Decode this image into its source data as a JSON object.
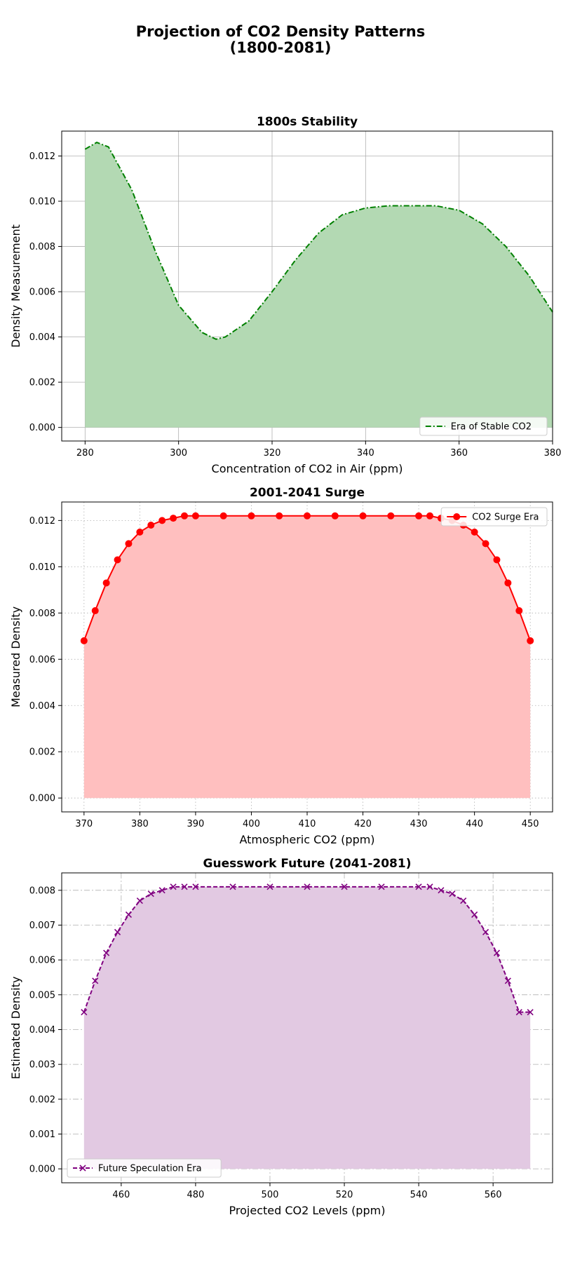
{
  "figure": {
    "title_line1": "Projection of CO2 Density Patterns",
    "title_line2": "(1800-2081)"
  },
  "chart_data": [
    {
      "type": "area",
      "title": "1800s Stability",
      "xlabel": "Concentration of CO2 in Air (ppm)",
      "ylabel": "Density Measurement",
      "xlim": [
        275,
        380
      ],
      "ylim": [
        -0.0006,
        0.0131
      ],
      "xticks": [
        "280",
        "300",
        "320",
        "340",
        "360",
        "380"
      ],
      "yticks": [
        "0.000",
        "0.002",
        "0.004",
        "0.006",
        "0.008",
        "0.010",
        "0.012"
      ],
      "grid": "solid",
      "legend_position": "lower-right",
      "series": [
        {
          "name": "Era of Stable CO2",
          "line_style": "dash-dot",
          "marker": "none",
          "color": "#008000",
          "fill_color": "#b3d9b3",
          "x": [
            280,
            282.5,
            285,
            290,
            295,
            300,
            305,
            308,
            310,
            315,
            320,
            325,
            330,
            335,
            340,
            345,
            350,
            355,
            360,
            365,
            370,
            375,
            380
          ],
          "y": [
            0.0123,
            0.0126,
            0.0124,
            0.0105,
            0.0078,
            0.0054,
            0.0042,
            0.0039,
            0.004,
            0.0047,
            0.006,
            0.0074,
            0.0086,
            0.0094,
            0.0097,
            0.0098,
            0.0098,
            0.0098,
            0.0096,
            0.009,
            0.008,
            0.0067,
            0.0051
          ]
        }
      ]
    },
    {
      "type": "area",
      "title": "2001-2041 Surge",
      "xlabel": "Atmospheric CO2 (ppm)",
      "ylabel": "Measured Density",
      "xlim": [
        366,
        454
      ],
      "ylim": [
        -0.0006,
        0.0128
      ],
      "xticks": [
        "370",
        "380",
        "390",
        "400",
        "410",
        "420",
        "430",
        "440",
        "450"
      ],
      "yticks": [
        "0.000",
        "0.002",
        "0.004",
        "0.006",
        "0.008",
        "0.010",
        "0.012"
      ],
      "grid": "dotted",
      "legend_position": "upper-right",
      "series": [
        {
          "name": "CO2 Surge Era",
          "line_style": "solid",
          "marker": "circle",
          "color": "#ff0000",
          "fill_color": "#ffbfbf",
          "x": [
            370,
            372,
            374,
            376,
            378,
            380,
            382,
            384,
            386,
            388,
            390,
            395,
            400,
            405,
            410,
            415,
            420,
            425,
            430,
            432,
            434,
            436,
            438,
            440,
            442,
            444,
            446,
            448,
            450
          ],
          "y": [
            0.0068,
            0.0081,
            0.0093,
            0.0103,
            0.011,
            0.0115,
            0.0118,
            0.012,
            0.0121,
            0.0122,
            0.0122,
            0.0122,
            0.0122,
            0.0122,
            0.0122,
            0.0122,
            0.0122,
            0.0122,
            0.0122,
            0.0122,
            0.0121,
            0.012,
            0.0118,
            0.0115,
            0.011,
            0.0103,
            0.0093,
            0.0081,
            0.0068
          ]
        }
      ]
    },
    {
      "type": "area",
      "title": "Guesswork Future (2041-2081)",
      "xlabel": "Projected CO2 Levels (ppm)",
      "ylabel": "Estimated Density",
      "xlim": [
        444,
        576
      ],
      "ylim": [
        -0.0004,
        0.0085
      ],
      "xticks": [
        "460",
        "480",
        "500",
        "520",
        "540",
        "560"
      ],
      "yticks": [
        "0.000",
        "0.001",
        "0.002",
        "0.003",
        "0.004",
        "0.005",
        "0.006",
        "0.007",
        "0.008"
      ],
      "grid": "dash-dot",
      "legend_position": "lower-left",
      "series": [
        {
          "name": "Future Speculation Era",
          "line_style": "dashed",
          "marker": "x",
          "color": "#800080",
          "fill_color": "#e2c9e2",
          "x": [
            450,
            453,
            456,
            459,
            462,
            465,
            468,
            471,
            474,
            477,
            480,
            490,
            500,
            510,
            520,
            530,
            540,
            543,
            546,
            549,
            552,
            555,
            558,
            561,
            564,
            567,
            570
          ],
          "y": [
            0.0045,
            0.0054,
            0.0062,
            0.0068,
            0.0073,
            0.0077,
            0.0079,
            0.008,
            0.0081,
            0.0081,
            0.0081,
            0.0081,
            0.0081,
            0.0081,
            0.0081,
            0.0081,
            0.0081,
            0.0081,
            0.008,
            0.0079,
            0.0077,
            0.0073,
            0.0068,
            0.0062,
            0.0054,
            0.0045,
            0.0045
          ]
        }
      ]
    }
  ]
}
